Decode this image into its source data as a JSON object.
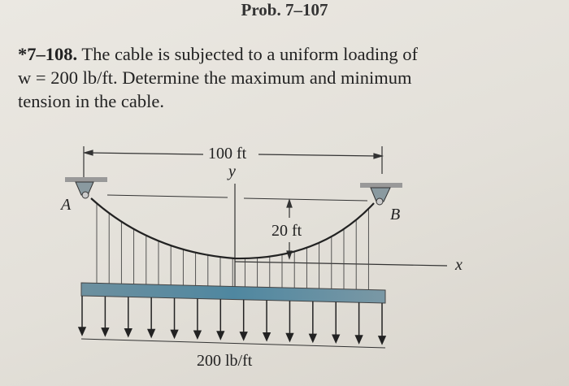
{
  "header": {
    "prev_problem": "Prob. 7–107"
  },
  "problem": {
    "number": "*7–108.",
    "lines": [
      "The cable is subjected to a uniform loading of",
      "w = 200 lb/ft. Determine the maximum and minimum",
      "tension in the cable."
    ]
  },
  "figure": {
    "span_label": "100 ft",
    "sag_label": "20 ft",
    "load_label": "200 lb/ft",
    "y_axis": "y",
    "x_axis": "x",
    "support_a": "A",
    "support_b": "B",
    "beam_color": "#5f8a9e"
  }
}
